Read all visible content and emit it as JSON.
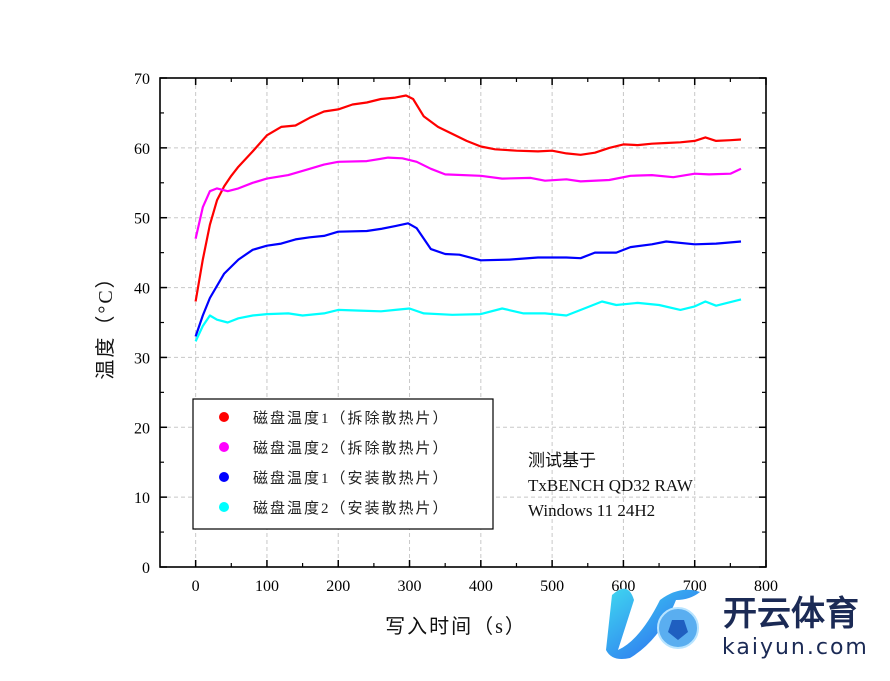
{
  "chart_data": {
    "type": "line",
    "title": "",
    "xlabel": "写入时间（s）",
    "ylabel": "温度（°C）",
    "xlim": [
      -50,
      800
    ],
    "ylim": [
      0,
      70
    ],
    "xticks": [
      0,
      100,
      200,
      300,
      400,
      500,
      600,
      700,
      800
    ],
    "yticks": [
      0,
      10,
      20,
      30,
      40,
      50,
      60,
      70
    ],
    "grid": true,
    "legend_position": "bottom-left",
    "annotation": [
      "测试基于",
      "TxBENCH QD32 RAW",
      "Windows 11 24H2"
    ],
    "series": [
      {
        "name": "磁盘温度1（拆除散热片）",
        "color": "#ff0000",
        "x": [
          0,
          10,
          20,
          30,
          40,
          50,
          60,
          80,
          100,
          120,
          140,
          160,
          180,
          200,
          220,
          240,
          260,
          280,
          295,
          305,
          320,
          340,
          360,
          380,
          400,
          420,
          450,
          480,
          500,
          520,
          540,
          560,
          580,
          600,
          620,
          640,
          660,
          680,
          700,
          715,
          730,
          750,
          765
        ],
        "y": [
          38,
          44,
          49,
          52.5,
          54.5,
          56,
          57.3,
          59.5,
          61.8,
          63,
          63.2,
          64.3,
          65.2,
          65.5,
          66.2,
          66.5,
          67,
          67.2,
          67.5,
          67,
          64.5,
          63,
          62,
          61,
          60.2,
          59.8,
          59.6,
          59.5,
          59.6,
          59.2,
          59,
          59.3,
          60,
          60.5,
          60.4,
          60.6,
          60.7,
          60.8,
          61,
          61.5,
          61,
          61.1,
          61.2
        ]
      },
      {
        "name": "磁盘温度2（拆除散热片）",
        "color": "#ff00ff",
        "x": [
          0,
          10,
          20,
          30,
          45,
          60,
          80,
          100,
          130,
          160,
          180,
          200,
          240,
          270,
          290,
          310,
          330,
          350,
          400,
          430,
          470,
          490,
          520,
          540,
          580,
          610,
          640,
          670,
          700,
          720,
          750,
          765
        ],
        "y": [
          47,
          51.5,
          53.8,
          54.2,
          53.8,
          54.2,
          55,
          55.6,
          56.1,
          57,
          57.6,
          58,
          58.1,
          58.6,
          58.5,
          58,
          57,
          56.2,
          56,
          55.6,
          55.7,
          55.3,
          55.5,
          55.2,
          55.4,
          56,
          56.1,
          55.8,
          56.3,
          56.2,
          56.3,
          57
        ]
      },
      {
        "name": "磁盘温度1（安装散热片）",
        "color": "#0000ff",
        "x": [
          0,
          10,
          20,
          40,
          60,
          80,
          100,
          120,
          140,
          160,
          180,
          200,
          240,
          260,
          280,
          298,
          310,
          330,
          350,
          370,
          400,
          440,
          480,
          520,
          540,
          560,
          590,
          610,
          640,
          660,
          700,
          730,
          765
        ],
        "y": [
          33,
          36,
          38.5,
          42,
          44,
          45.4,
          46,
          46.3,
          46.9,
          47.2,
          47.4,
          48,
          48.1,
          48.4,
          48.8,
          49.2,
          48.5,
          45.5,
          44.8,
          44.7,
          43.9,
          44,
          44.3,
          44.3,
          44.2,
          45,
          45,
          45.8,
          46.2,
          46.6,
          46.2,
          46.3,
          46.6
        ]
      },
      {
        "name": "磁盘温度2（安装散热片）",
        "color": "#00ffff",
        "x": [
          0,
          10,
          20,
          30,
          45,
          60,
          80,
          100,
          130,
          150,
          180,
          200,
          230,
          260,
          280,
          300,
          320,
          360,
          400,
          430,
          460,
          490,
          520,
          550,
          570,
          590,
          620,
          650,
          680,
          700,
          715,
          730,
          765
        ],
        "y": [
          32.3,
          34.5,
          36,
          35.4,
          35,
          35.6,
          36,
          36.2,
          36.3,
          36,
          36.3,
          36.8,
          36.7,
          36.6,
          36.8,
          37,
          36.3,
          36.1,
          36.2,
          37,
          36.3,
          36.3,
          36,
          37.2,
          38,
          37.5,
          37.8,
          37.5,
          36.8,
          37.3,
          38,
          37.4,
          38.3
        ]
      }
    ]
  },
  "watermark": {
    "brand": "开云体育",
    "domain": "kaiyun.com"
  }
}
